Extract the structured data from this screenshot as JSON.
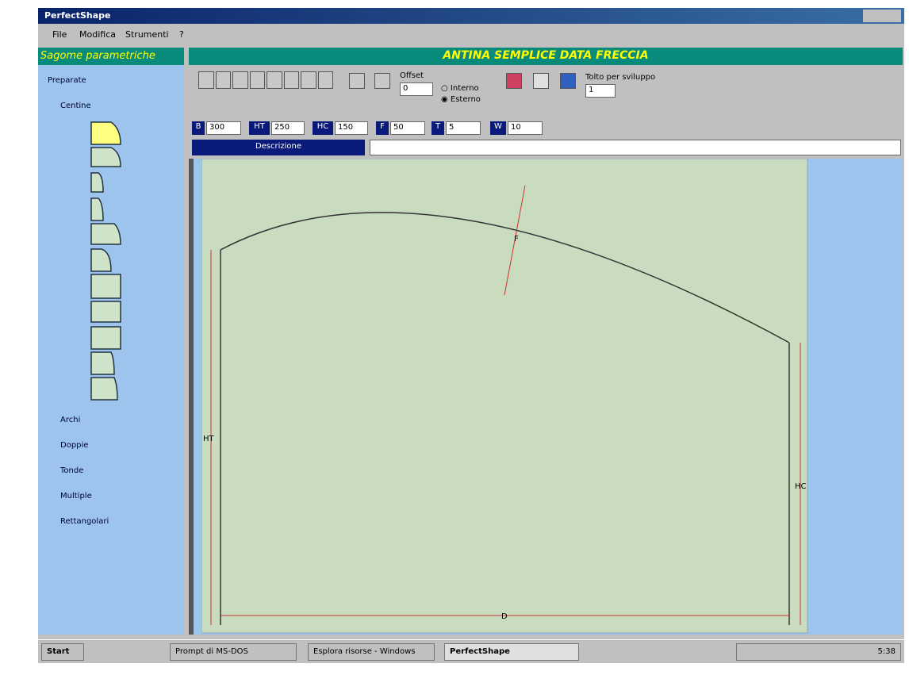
{
  "window": {
    "title": "PerfectShape",
    "menu": [
      "File",
      "Modifica",
      "Strumenti",
      "?"
    ]
  },
  "sidebar": {
    "title": "Sagome parametriche",
    "tree": [
      "Preparate",
      "Centine",
      "Archi",
      "Doppie",
      "Tonde",
      "Multiple",
      "Rettangolari"
    ]
  },
  "editor": {
    "title": "ANTINA SEMPLICE DATA FRECCIA",
    "offset_label": "Offset",
    "offset_value": "0",
    "radio": [
      "Interno",
      "Esterno"
    ],
    "tolerance_label": "Tolto per sviluppo",
    "tolerance_value": "1",
    "fields": [
      {
        "label": "B",
        "value": "300"
      },
      {
        "label": "HT",
        "value": "250"
      },
      {
        "label": "HC",
        "value": "150"
      },
      {
        "label": "F",
        "value": "50"
      },
      {
        "label": "T",
        "value": "5"
      },
      {
        "label": "W",
        "value": "10"
      }
    ],
    "description_label": "Descrizione",
    "dimensions": [
      "F",
      "HT",
      "HC",
      "D"
    ]
  },
  "taskbar": {
    "start": "Start",
    "tasks": [
      "Prompt di MS-DOS",
      "Esplora risorse - Windows",
      "PerfectShape"
    ],
    "clock": "5:38"
  }
}
